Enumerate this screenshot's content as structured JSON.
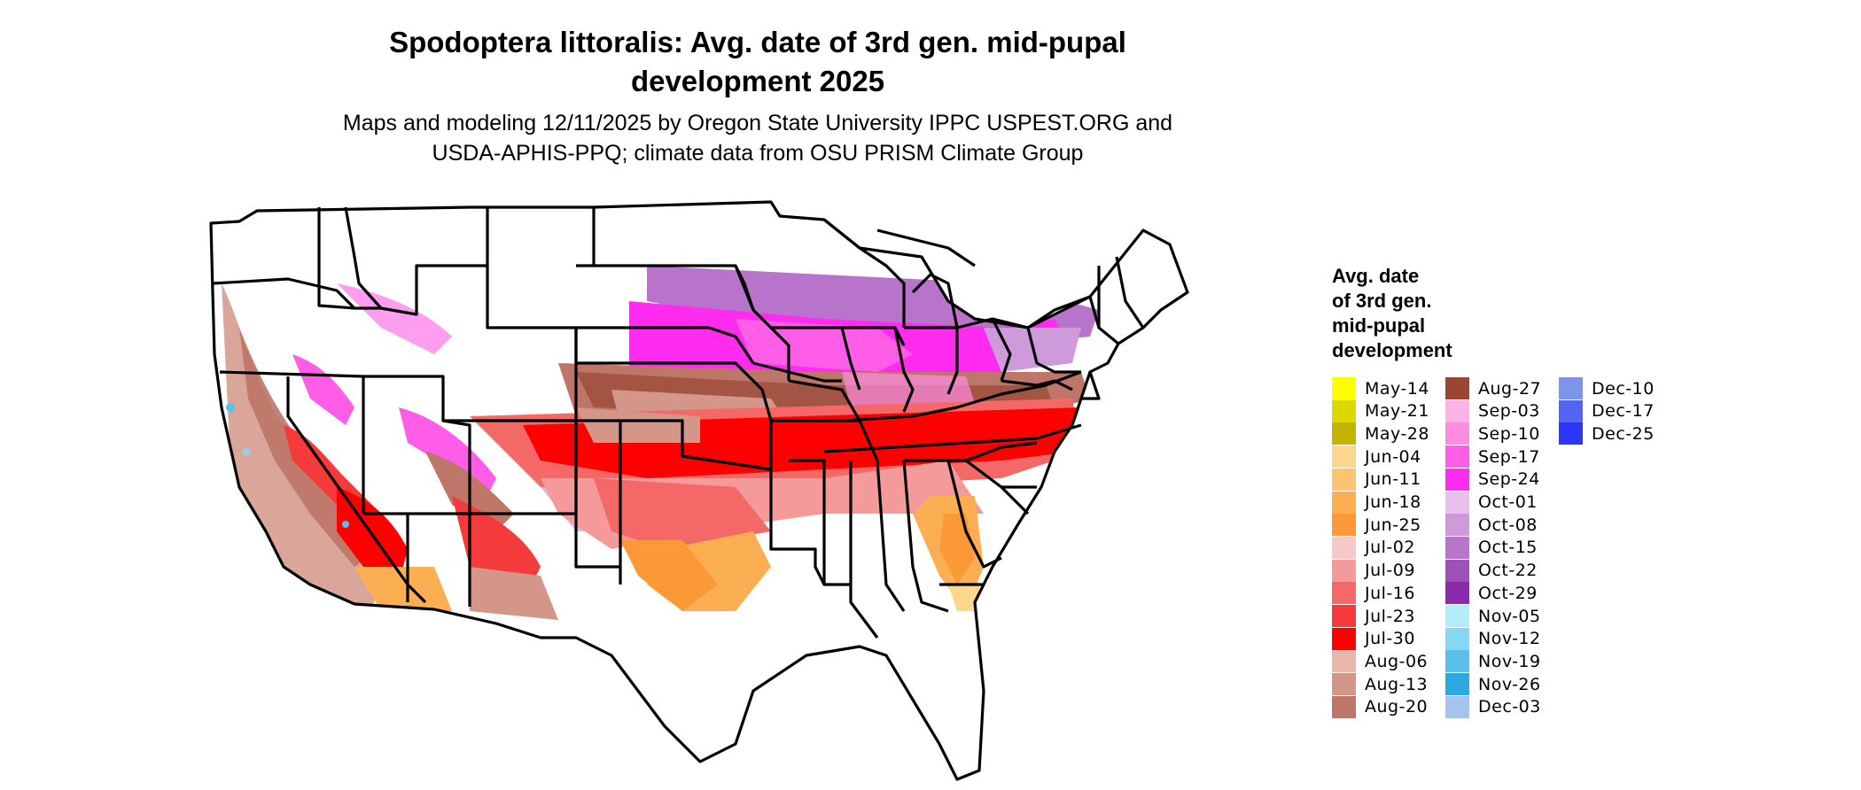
{
  "title_line1": "Spodoptera littoralis: Avg. date of 3rd gen. mid-pupal",
  "title_line2": "development 2025",
  "subtitle_line1": "Maps and modeling 12/11/2025 by Oregon State University IPPC USPEST.ORG and",
  "subtitle_line2": "USDA-APHIS-PPQ; climate data from OSU PRISM Climate Group",
  "legend": {
    "title_lines": [
      "Avg. date",
      "of 3rd gen.",
      "mid-pupal",
      "development"
    ],
    "items": [
      {
        "label": "May-14",
        "color": "#ffff00"
      },
      {
        "label": "May-21",
        "color": "#dcd800"
      },
      {
        "label": "May-28",
        "color": "#c4b300"
      },
      {
        "label": "Jun-04",
        "color": "#fdd88c"
      },
      {
        "label": "Jun-11",
        "color": "#fbc46f"
      },
      {
        "label": "Jun-18",
        "color": "#fbaf52"
      },
      {
        "label": "Jun-25",
        "color": "#fb9937"
      },
      {
        "label": "Jul-02",
        "color": "#f7c8c8"
      },
      {
        "label": "Jul-09",
        "color": "#f59a9a"
      },
      {
        "label": "Jul-16",
        "color": "#f46868"
      },
      {
        "label": "Jul-23",
        "color": "#f43a3a"
      },
      {
        "label": "Jul-30",
        "color": "#ff0000"
      },
      {
        "label": "Aug-06",
        "color": "#e8b7ac"
      },
      {
        "label": "Aug-13",
        "color": "#d39688"
      },
      {
        "label": "Aug-20",
        "color": "#bd7667"
      },
      {
        "label": "Aug-27",
        "color": "#9a4633"
      },
      {
        "label": "Sep-03",
        "color": "#ffb2e6"
      },
      {
        "label": "Sep-10",
        "color": "#ff8ce2"
      },
      {
        "label": "Sep-17",
        "color": "#ff5ce8"
      },
      {
        "label": "Sep-24",
        "color": "#ff2cf0"
      },
      {
        "label": "Oct-01",
        "color": "#e7c0ec"
      },
      {
        "label": "Oct-08",
        "color": "#cf9ada"
      },
      {
        "label": "Oct-15",
        "color": "#b874ca"
      },
      {
        "label": "Oct-22",
        "color": "#a050ba"
      },
      {
        "label": "Oct-29",
        "color": "#8a2aac"
      },
      {
        "label": "Nov-05",
        "color": "#b4ecfb"
      },
      {
        "label": "Nov-12",
        "color": "#86d7f2"
      },
      {
        "label": "Nov-19",
        "color": "#5ac0ea"
      },
      {
        "label": "Nov-26",
        "color": "#2ea8e0"
      },
      {
        "label": "Dec-03",
        "color": "#a4c4ee"
      },
      {
        "label": "Dec-10",
        "color": "#7e94ec"
      },
      {
        "label": "Dec-17",
        "color": "#5466f0"
      },
      {
        "label": "Dec-25",
        "color": "#2a36f8"
      }
    ]
  }
}
